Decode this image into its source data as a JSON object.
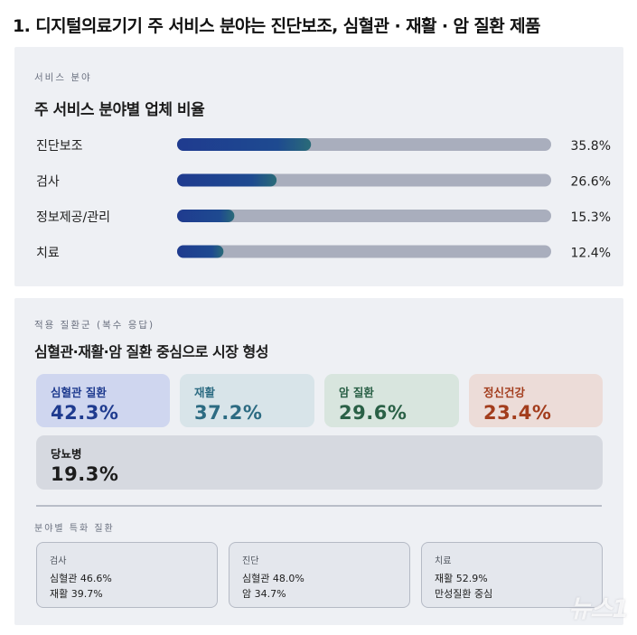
{
  "headline": "1. 디지털의료기기 주 서비스 분야는 진단보조, 심혈관 · 재활 · 암 질환 제품",
  "service": {
    "caption": "서비스 분야",
    "title": "주 서비스 분야별 업체 비율"
  },
  "chart_data": {
    "type": "bar",
    "orientation": "horizontal",
    "categories": [
      "진단보조",
      "검사",
      "정보제공/관리",
      "치료"
    ],
    "values": [
      35.8,
      26.6,
      15.3,
      12.4
    ],
    "value_labels": [
      "35.8%",
      "26.6%",
      "15.3%",
      "12.4%"
    ],
    "unit": "%",
    "xlim": [
      0,
      100
    ],
    "bar_color": "#1f3b8f",
    "track_color": "#a9aebd"
  },
  "disease": {
    "caption": "적용 질환군 (복수 응답)",
    "title": "심혈관·재활·암 질환 중심으로 시장 형성",
    "items": [
      {
        "name": "심혈관 질환",
        "value": "42.3%",
        "color": "#1f3b8f",
        "bg": "#cfd6ef"
      },
      {
        "name": "재활",
        "value": "37.2%",
        "color": "#2c6b82",
        "bg": "#d8e4e9"
      },
      {
        "name": "암 질환",
        "value": "29.6%",
        "color": "#2a6046",
        "bg": "#d8e5de"
      },
      {
        "name": "정신건강",
        "value": "23.4%",
        "color": "#a33d1d",
        "bg": "#ecdcd8"
      },
      {
        "name": "당뇨병",
        "value": "19.3%",
        "color": "#1c1c1c",
        "bg": "#d6d9e0"
      }
    ]
  },
  "specialty": {
    "caption": "분야별 특화 질환",
    "boxes": [
      {
        "caption": "검사",
        "lines": [
          "심혈관 46.6%",
          "재활 39.7%"
        ]
      },
      {
        "caption": "진단",
        "lines": [
          "심혈관 48.0%",
          "암 34.7%"
        ]
      },
      {
        "caption": "치료",
        "lines": [
          "재활 52.9%",
          "만성질환 중심"
        ]
      }
    ]
  },
  "watermark": "뉴스1"
}
